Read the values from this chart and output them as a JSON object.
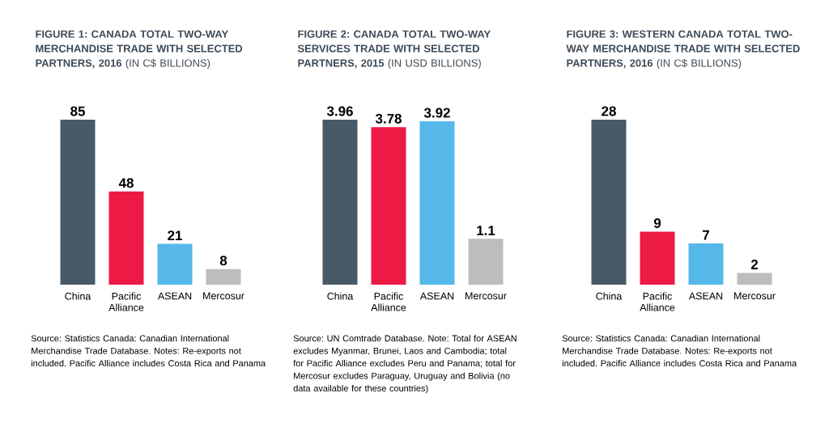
{
  "chart_data": [
    {
      "type": "bar",
      "title": "FIGURE 1: CANADA TOTAL TWO-WAY MERCHANDISE TRADE WITH SELECTED PARTNERS, 2016",
      "subtitle": "(IN C$ BILLIONS)",
      "categories": [
        "China",
        "Pacific Alliance",
        "ASEAN",
        "Mercosur"
      ],
      "values": [
        85,
        48,
        21,
        8
      ],
      "colors": [
        "#485a68",
        "#ec1a45",
        "#55b8e8",
        "#bcbdbf"
      ],
      "data_labels": true,
      "annotations": [
        "Source: Statistics Canada: Canadian International Merchandise Trade Database. Notes: Re-exports not included. Pacific Alliance includes Costa Rica and Panama"
      ]
    },
    {
      "type": "bar",
      "title": "FIGURE 2: CANADA TOTAL TWO-WAY SERVICES TRADE WITH SELECTED PARTNERS, 2015",
      "subtitle": "(IN USD BILLIONS)",
      "categories": [
        "China",
        "Pacific Alliance",
        "ASEAN",
        "Mercosur"
      ],
      "values": [
        3.96,
        3.78,
        3.92,
        1.1
      ],
      "colors": [
        "#485a68",
        "#ec1a45",
        "#55b8e8",
        "#bcbdbf"
      ],
      "data_labels": true,
      "annotations": [
        "Source: UN Comtrade Database. Note: Total for ASEAN excludes Myanmar, Brunei, Laos and Cambodia; total for Pacific Alliance excludes Peru and Panama; total for Mercosur excludes Paraguay, Uruguay and Bolivia (no data available for these countries)"
      ]
    },
    {
      "type": "bar",
      "title": "FIGURE 3: WESTERN CANADA TOTAL TWO-WAY MERCHANDISE TRADE WITH SELECTED PARTNERS, 2016",
      "subtitle": "(IN C$ BILLIONS)",
      "categories": [
        "China",
        "Pacific Alliance",
        "ASEAN",
        "Mercosur"
      ],
      "values": [
        28,
        9,
        7,
        2
      ],
      "colors": [
        "#485a68",
        "#ec1a45",
        "#55b8e8",
        "#bcbdbf"
      ],
      "data_labels": true,
      "annotations": [
        "Source: Statistics Canada: Canadian International Merchandise Trade Database. Notes: Re-exports not included. Pacific Alliance includes Costa Rica and Panama"
      ]
    }
  ]
}
